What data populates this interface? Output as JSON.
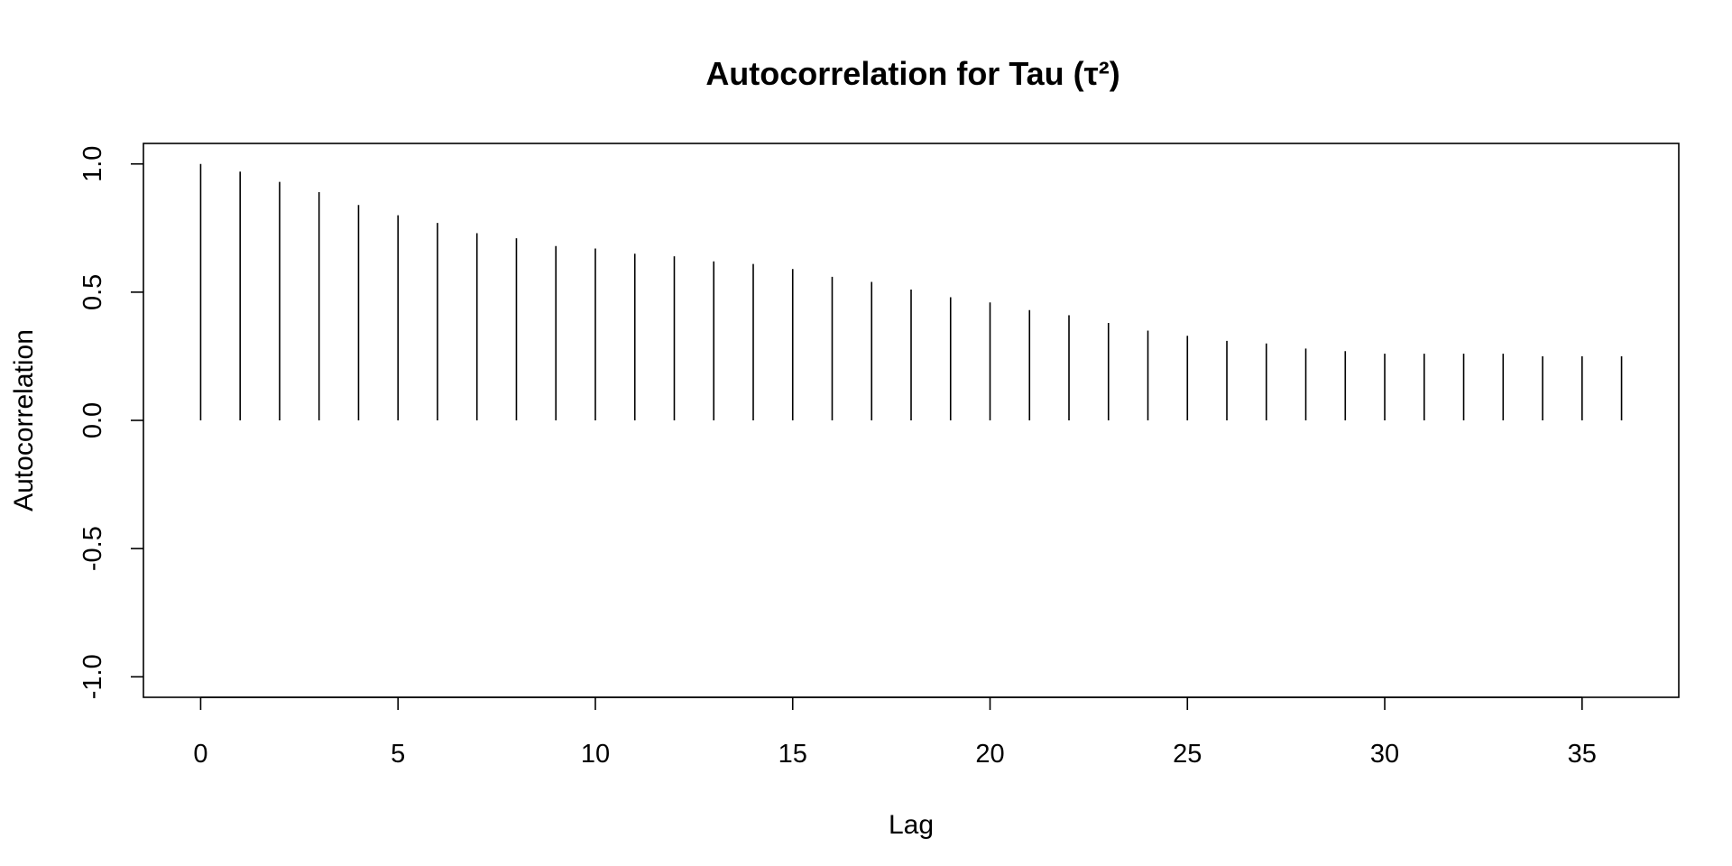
{
  "chart_data": {
    "type": "bar",
    "title": "Autocorrelation for Tau (τ²)",
    "xlabel": "Lag",
    "ylabel": "Autocorrelation",
    "xlim": [
      -1.45,
      37.45
    ],
    "ylim": [
      -1.08,
      1.08
    ],
    "xticks": [
      0,
      5,
      10,
      15,
      20,
      25,
      30,
      35
    ],
    "xtick_labels": [
      "0",
      "5",
      "10",
      "15",
      "20",
      "25",
      "30",
      "35"
    ],
    "yticks": [
      -1.0,
      -0.5,
      0.0,
      0.5,
      1.0
    ],
    "ytick_labels": [
      "-1.0",
      "-0.5",
      "0.0",
      "0.5",
      "1.0"
    ],
    "grid": false,
    "legend": "none",
    "lags": [
      0,
      1,
      2,
      3,
      4,
      5,
      6,
      7,
      8,
      9,
      10,
      11,
      12,
      13,
      14,
      15,
      16,
      17,
      18,
      19,
      20,
      21,
      22,
      23,
      24,
      25,
      26,
      27,
      28,
      29,
      30,
      31,
      32,
      33,
      34,
      35,
      36
    ],
    "values": [
      1.0,
      0.97,
      0.93,
      0.89,
      0.84,
      0.8,
      0.77,
      0.73,
      0.71,
      0.68,
      0.67,
      0.65,
      0.64,
      0.62,
      0.61,
      0.59,
      0.56,
      0.54,
      0.51,
      0.48,
      0.46,
      0.43,
      0.41,
      0.38,
      0.35,
      0.33,
      0.31,
      0.3,
      0.28,
      0.27,
      0.26,
      0.26,
      0.26,
      0.26,
      0.25,
      0.25,
      0.25
    ]
  }
}
